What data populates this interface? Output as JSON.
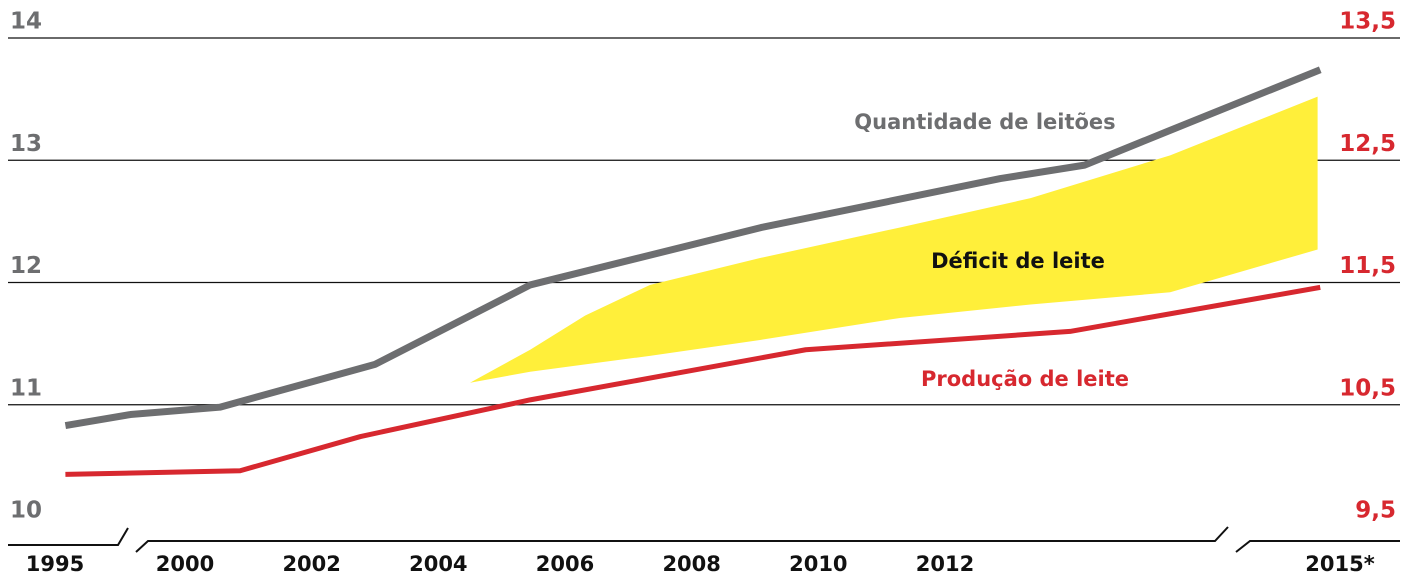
{
  "chart_data": {
    "type": "line",
    "xlim": [
      1995,
      2015
    ],
    "xticks": [
      1995,
      2000,
      2002,
      2004,
      2006,
      2008,
      2010,
      2012,
      {
        "value": 2015,
        "label": "2015*"
      }
    ],
    "ylim": [
      10,
      14
    ],
    "yticks": [
      10,
      11,
      12,
      13,
      14
    ],
    "y2lim": [
      9.5,
      13.5
    ],
    "y2ticks": [
      {
        "value": 9.5,
        "label": "9,5"
      },
      {
        "value": 10.5,
        "label": "10,5"
      },
      {
        "value": 11.5,
        "label": "11,5"
      },
      {
        "value": 12.5,
        "label": "12,5"
      },
      {
        "value": 13.5,
        "label": "13,5"
      }
    ],
    "grid": true,
    "series": [
      {
        "name": "Quantidade de leitões",
        "color": "#6d6e70",
        "axis": "y",
        "x": [
          1995.4,
          1997.9,
          2000.55,
          2003.0,
          2005.45,
          2009.1,
          2012.42,
          2013.06,
          2013.63,
          2014.85
        ],
        "values": [
          10.83,
          10.92,
          10.98,
          11.33,
          11.98,
          12.45,
          12.85,
          12.96,
          13.21,
          13.74
        ]
      },
      {
        "name": "Produção de leite",
        "color": "#d7282f",
        "axis": "y2",
        "x": [
          1995.4,
          2000.87,
          2002.77,
          2005.45,
          2009.8,
          2012.95,
          2014.85
        ],
        "values": [
          9.93,
          9.96,
          10.24,
          10.54,
          10.95,
          11.1,
          11.46
        ]
      }
    ],
    "band": {
      "name": "Déficit de leite",
      "color": "#ffef3a",
      "x": [
        2004.5,
        2005.45,
        2006.32,
        2007.34,
        2009.08,
        2011.29,
        2012.65,
        2013.71,
        2014.83
      ],
      "upper": [
        11.18,
        11.45,
        11.73,
        11.98,
        12.2,
        12.45,
        12.69,
        13.04,
        13.52
      ],
      "lower": [
        11.18,
        11.27,
        11.33,
        11.4,
        11.53,
        11.71,
        11.82,
        11.92,
        12.27
      ]
    }
  }
}
